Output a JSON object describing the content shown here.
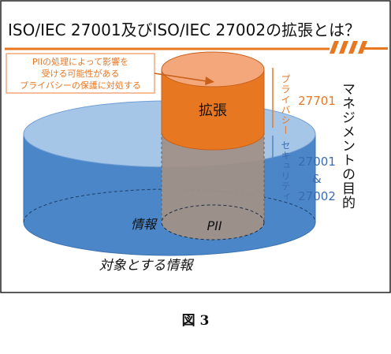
{
  "title": "ISO/IEC 27001及びISO/IEC 27002の拡張とは？",
  "callout": {
    "lines": [
      "PIIの処理によって影響を",
      "受ける可能性がある",
      "プライバシーの保護に対処する"
    ]
  },
  "labels": {
    "expansion": "拡張",
    "information": "情報",
    "pii": "PII",
    "target_information": "対象とする情報"
  },
  "side": {
    "privacy_label": "プライバシー",
    "privacy_standard": "27701",
    "security_label": "セキュリティ",
    "security_std_1": "27001",
    "security_amp": "&",
    "security_std_2": "27002",
    "management_purpose": "マネジメントの目的"
  },
  "caption": "図 3",
  "colors": {
    "orange": "#E87722",
    "orange_light": "#F4A77A",
    "blue": "#4A86C8",
    "blue_top": "#A6C6E8",
    "gray_body": "#A09088",
    "blue_text": "#3A6CB0"
  }
}
